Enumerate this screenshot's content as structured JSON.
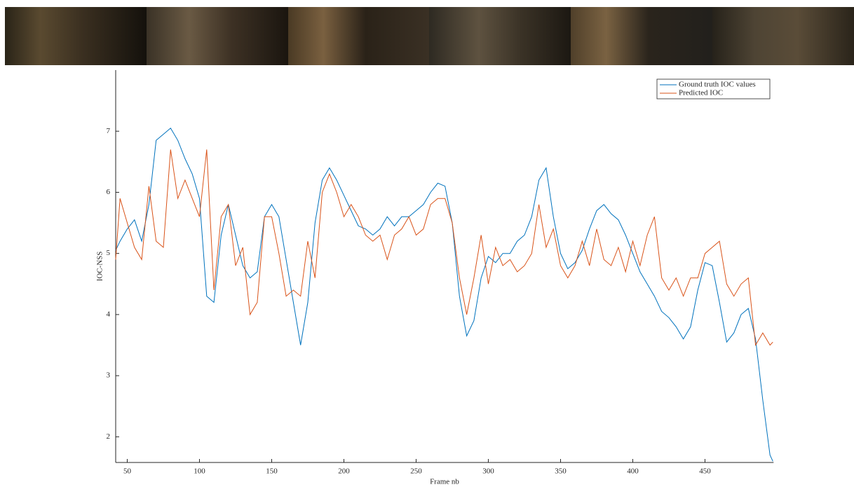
{
  "chart_data": {
    "type": "line",
    "xlabel": "Frame nb",
    "ylabel": "IOC-NSS",
    "xlim": [
      42,
      497.5
    ],
    "ylim": [
      1.58,
      8
    ],
    "xticks": [
      50,
      100,
      150,
      200,
      250,
      300,
      350,
      400,
      450
    ],
    "yticks": [
      2,
      3,
      4,
      5,
      6,
      7
    ],
    "legend": "upper right",
    "x": [
      42,
      45,
      50,
      55,
      60,
      65,
      70,
      75,
      80,
      85,
      90,
      95,
      100,
      105,
      110,
      115,
      120,
      125,
      130,
      135,
      140,
      145,
      150,
      155,
      160,
      165,
      170,
      175,
      180,
      185,
      190,
      195,
      200,
      205,
      210,
      215,
      220,
      225,
      230,
      235,
      240,
      245,
      250,
      255,
      260,
      265,
      270,
      275,
      280,
      285,
      290,
      295,
      300,
      305,
      310,
      315,
      320,
      325,
      330,
      335,
      340,
      345,
      350,
      355,
      360,
      365,
      370,
      375,
      380,
      385,
      390,
      395,
      400,
      405,
      410,
      415,
      420,
      425,
      430,
      435,
      440,
      445,
      450,
      455,
      460,
      465,
      470,
      475,
      480,
      485,
      490,
      495,
      497
    ],
    "series": [
      {
        "name": "Ground truth IOC values",
        "color": "#0072bd",
        "values": [
          5.05,
          5.2,
          5.4,
          5.55,
          5.2,
          5.8,
          6.85,
          6.95,
          7.05,
          6.85,
          6.55,
          6.3,
          5.9,
          4.3,
          4.2,
          5.3,
          5.8,
          5.3,
          4.8,
          4.6,
          4.7,
          5.6,
          5.8,
          5.6,
          4.9,
          4.2,
          3.5,
          4.2,
          5.5,
          6.2,
          6.4,
          6.2,
          5.95,
          5.7,
          5.45,
          5.4,
          5.3,
          5.4,
          5.6,
          5.45,
          5.6,
          5.6,
          5.7,
          5.8,
          6.0,
          6.15,
          6.1,
          5.5,
          4.3,
          3.65,
          3.9,
          4.6,
          4.95,
          4.85,
          5.0,
          5.0,
          5.2,
          5.3,
          5.6,
          6.2,
          6.4,
          5.6,
          5.0,
          4.75,
          4.85,
          5.05,
          5.4,
          5.7,
          5.8,
          5.65,
          5.55,
          5.3,
          5.0,
          4.7,
          4.5,
          4.3,
          4.05,
          3.95,
          3.8,
          3.6,
          3.8,
          4.4,
          4.85,
          4.8,
          4.2,
          3.55,
          3.7,
          4.0,
          4.1,
          3.6,
          2.6,
          1.7,
          1.6
        ]
      },
      {
        "name": "Predicted IOC",
        "color": "#d95319",
        "values": [
          4.9,
          5.9,
          5.5,
          5.1,
          4.9,
          6.1,
          5.2,
          5.1,
          6.7,
          5.9,
          6.2,
          5.9,
          5.6,
          6.7,
          4.4,
          5.6,
          5.8,
          4.8,
          5.1,
          4.0,
          4.2,
          5.6,
          5.6,
          5.0,
          4.3,
          4.4,
          4.3,
          5.2,
          4.6,
          6.0,
          6.3,
          6.0,
          5.6,
          5.8,
          5.6,
          5.3,
          5.2,
          5.3,
          4.9,
          5.3,
          5.4,
          5.6,
          5.3,
          5.4,
          5.8,
          5.9,
          5.9,
          5.5,
          4.6,
          4.0,
          4.6,
          5.3,
          4.5,
          5.1,
          4.8,
          4.9,
          4.7,
          4.8,
          5.0,
          5.8,
          5.1,
          5.4,
          4.8,
          4.6,
          4.8,
          5.2,
          4.8,
          5.4,
          4.9,
          4.8,
          5.1,
          4.7,
          5.2,
          4.8,
          5.3,
          5.6,
          4.6,
          4.4,
          4.6,
          4.3,
          4.6,
          4.6,
          5.0,
          5.1,
          5.2,
          4.5,
          4.3,
          4.5,
          4.6,
          3.5,
          3.7,
          3.5,
          3.55
        ]
      }
    ]
  }
}
